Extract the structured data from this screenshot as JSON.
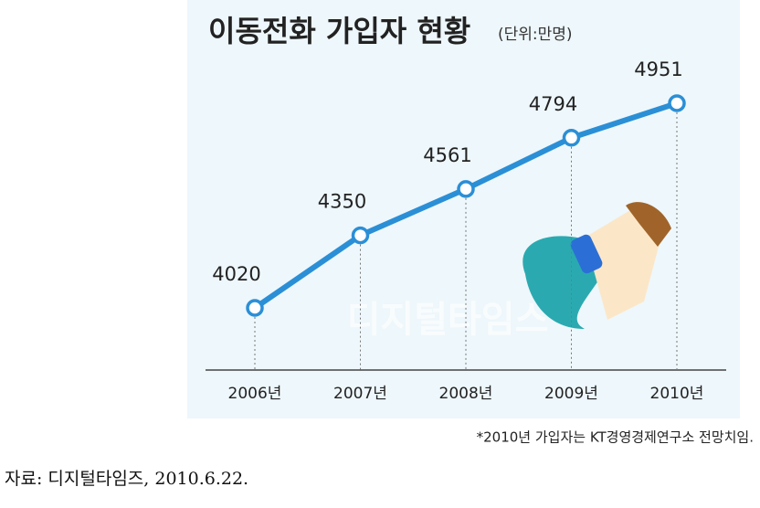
{
  "chart_data": {
    "type": "line",
    "title": "이동전화 가입자 현황",
    "subtitle": "(단위:만명)",
    "categories": [
      "2006년",
      "2007년",
      "2008년",
      "2009년",
      "2010년"
    ],
    "values": [
      4020,
      4350,
      4561,
      4794,
      4951
    ],
    "color": "#2b8fd6",
    "watermark": "디지털타임스",
    "footnote": "*2010년 가입자는 KT경영경제연구소 전망치임.",
    "source": "자료: 디지털타임즈, 2010.6.22."
  }
}
